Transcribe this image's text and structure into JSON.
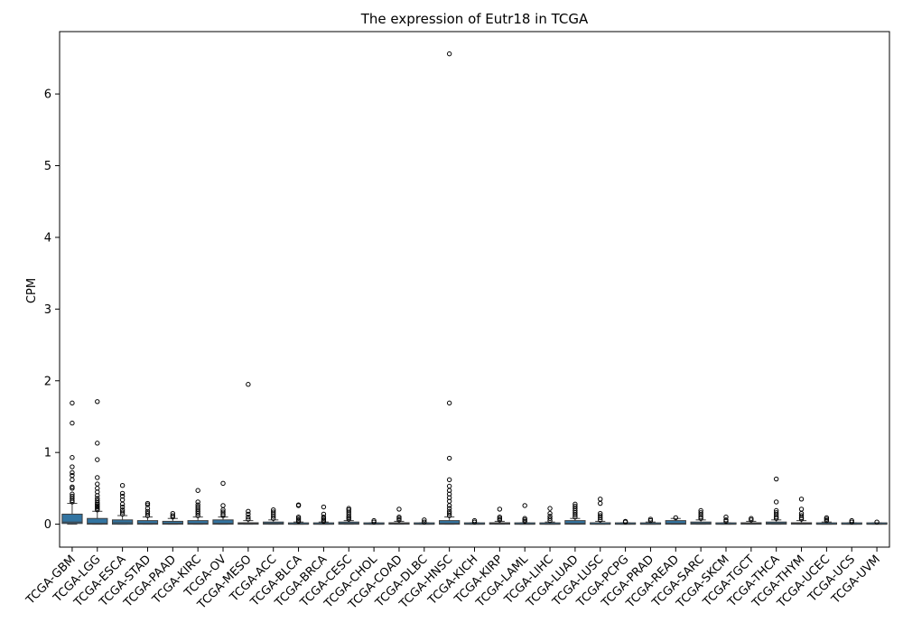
{
  "chart_data": {
    "type": "box",
    "title": "The expression of Eutr18 in TCGA",
    "xlabel": "",
    "ylabel": "CPM",
    "ylim": [
      -0.32,
      6.87
    ],
    "yticks": [
      0,
      1,
      2,
      3,
      4,
      5,
      6
    ],
    "box_color": "#3274a1",
    "categories": [
      "TCGA-GBM",
      "TCGA-LGG",
      "TCGA-ESCA",
      "TCGA-STAD",
      "TCGA-PAAD",
      "TCGA-KIRC",
      "TCGA-OV",
      "TCGA-MESO",
      "TCGA-ACC",
      "TCGA-BLCA",
      "TCGA-BRCA",
      "TCGA-CESC",
      "TCGA-CHOL",
      "TCGA-COAD",
      "TCGA-DLBC",
      "TCGA-HNSC",
      "TCGA-KICH",
      "TCGA-KIRP",
      "TCGA-LAML",
      "TCGA-LIHC",
      "TCGA-LUAD",
      "TCGA-LUSC",
      "TCGA-PCPG",
      "TCGA-PRAD",
      "TCGA-READ",
      "TCGA-SARC",
      "TCGA-SKCM",
      "TCGA-TGCT",
      "TCGA-THCA",
      "TCGA-THYM",
      "TCGA-UCEC",
      "TCGA-UCS",
      "TCGA-UVM"
    ],
    "boxes": [
      {
        "whislo": 0,
        "q1": 0.01,
        "med": 0.03,
        "q3": 0.14,
        "whishi": 0.29,
        "fliers": [
          0.31,
          0.33,
          0.36,
          0.39,
          0.42,
          0.5,
          0.52,
          0.62,
          0.68,
          0.72,
          0.8,
          0.93,
          1.41,
          1.69
        ]
      },
      {
        "whislo": 0,
        "q1": 0.0,
        "med": 0.01,
        "q3": 0.08,
        "whishi": 0.18,
        "fliers": [
          0.2,
          0.22,
          0.24,
          0.26,
          0.28,
          0.3,
          0.33,
          0.36,
          0.4,
          0.45,
          0.5,
          0.56,
          0.65,
          0.9,
          1.13,
          1.71
        ]
      },
      {
        "whislo": 0,
        "q1": 0.0,
        "med": 0.02,
        "q3": 0.06,
        "whishi": 0.12,
        "fliers": [
          0.14,
          0.17,
          0.2,
          0.24,
          0.28,
          0.34,
          0.39,
          0.43,
          0.54
        ]
      },
      {
        "whislo": 0,
        "q1": 0.0,
        "med": 0.01,
        "q3": 0.05,
        "whishi": 0.1,
        "fliers": [
          0.12,
          0.15,
          0.18,
          0.22,
          0.27,
          0.29
        ]
      },
      {
        "whislo": 0,
        "q1": 0.0,
        "med": 0.01,
        "q3": 0.04,
        "whishi": 0.08,
        "fliers": [
          0.1,
          0.12,
          0.15
        ]
      },
      {
        "whislo": 0,
        "q1": 0.0,
        "med": 0.01,
        "q3": 0.05,
        "whishi": 0.1,
        "fliers": [
          0.12,
          0.15,
          0.18,
          0.21,
          0.24,
          0.27,
          0.31,
          0.47
        ]
      },
      {
        "whislo": 0,
        "q1": 0.0,
        "med": 0.01,
        "q3": 0.06,
        "whishi": 0.1,
        "fliers": [
          0.12,
          0.14,
          0.17,
          0.2,
          0.26,
          0.57
        ]
      },
      {
        "whislo": 0,
        "q1": 0.0,
        "med": 0.01,
        "q3": 0.02,
        "whishi": 0.05,
        "fliers": [
          0.07,
          0.1,
          0.14,
          0.18,
          1.95
        ]
      },
      {
        "whislo": 0,
        "q1": 0.0,
        "med": 0.01,
        "q3": 0.03,
        "whishi": 0.06,
        "fliers": [
          0.08,
          0.11,
          0.14,
          0.17,
          0.2
        ]
      },
      {
        "whislo": 0,
        "q1": 0.0,
        "med": 0.0,
        "q3": 0.01,
        "whishi": 0.03,
        "fliers": [
          0.04,
          0.06,
          0.08,
          0.1,
          0.26,
          0.27
        ]
      },
      {
        "whislo": 0,
        "q1": 0.0,
        "med": 0.0,
        "q3": 0.01,
        "whishi": 0.03,
        "fliers": [
          0.04,
          0.06,
          0.08,
          0.1,
          0.14,
          0.24
        ]
      },
      {
        "whislo": 0,
        "q1": 0.0,
        "med": 0.01,
        "q3": 0.03,
        "whishi": 0.05,
        "fliers": [
          0.07,
          0.09,
          0.11,
          0.14,
          0.17,
          0.2,
          0.22
        ]
      },
      {
        "whislo": 0,
        "q1": 0.0,
        "med": 0.0,
        "q3": 0.01,
        "whishi": 0.02,
        "fliers": [
          0.03,
          0.05
        ]
      },
      {
        "whislo": 0,
        "q1": 0.0,
        "med": 0.01,
        "q3": 0.02,
        "whishi": 0.04,
        "fliers": [
          0.06,
          0.08,
          0.1,
          0.21
        ]
      },
      {
        "whislo": 0,
        "q1": 0.0,
        "med": 0.0,
        "q3": 0.01,
        "whishi": 0.02,
        "fliers": [
          0.03,
          0.06
        ]
      },
      {
        "whislo": 0,
        "q1": 0.0,
        "med": 0.01,
        "q3": 0.05,
        "whishi": 0.1,
        "fliers": [
          0.12,
          0.15,
          0.18,
          0.22,
          0.26,
          0.32,
          0.37,
          0.42,
          0.47,
          0.53,
          0.62,
          0.92,
          1.69,
          6.56
        ]
      },
      {
        "whislo": 0,
        "q1": 0.0,
        "med": 0.0,
        "q3": 0.01,
        "whishi": 0.02,
        "fliers": [
          0.03,
          0.05
        ]
      },
      {
        "whislo": 0,
        "q1": 0.0,
        "med": 0.01,
        "q3": 0.02,
        "whishi": 0.04,
        "fliers": [
          0.06,
          0.08,
          0.1,
          0.21
        ]
      },
      {
        "whislo": 0,
        "q1": 0.0,
        "med": 0.0,
        "q3": 0.01,
        "whishi": 0.02,
        "fliers": [
          0.04,
          0.06,
          0.08,
          0.26
        ]
      },
      {
        "whislo": 0,
        "q1": 0.0,
        "med": 0.0,
        "q3": 0.01,
        "whishi": 0.03,
        "fliers": [
          0.05,
          0.08,
          0.11,
          0.15,
          0.22
        ]
      },
      {
        "whislo": 0,
        "q1": 0.0,
        "med": 0.01,
        "q3": 0.05,
        "whishi": 0.08,
        "fliers": [
          0.1,
          0.13,
          0.16,
          0.19,
          0.22,
          0.25,
          0.28
        ]
      },
      {
        "whislo": 0,
        "q1": 0.0,
        "med": 0.0,
        "q3": 0.02,
        "whishi": 0.04,
        "fliers": [
          0.06,
          0.09,
          0.12,
          0.15,
          0.29,
          0.35
        ]
      },
      {
        "whislo": 0,
        "q1": 0.0,
        "med": 0.0,
        "q3": 0.01,
        "whishi": 0.02,
        "fliers": [
          0.03,
          0.04
        ]
      },
      {
        "whislo": 0,
        "q1": 0.0,
        "med": 0.0,
        "q3": 0.01,
        "whishi": 0.03,
        "fliers": [
          0.05,
          0.07
        ]
      },
      {
        "whislo": 0,
        "q1": 0.0,
        "med": 0.01,
        "q3": 0.05,
        "whishi": 0.08,
        "fliers": [
          0.09
        ]
      },
      {
        "whislo": 0,
        "q1": 0.0,
        "med": 0.01,
        "q3": 0.03,
        "whishi": 0.06,
        "fliers": [
          0.08,
          0.1,
          0.13,
          0.16,
          0.19
        ]
      },
      {
        "whislo": 0,
        "q1": 0.0,
        "med": 0.0,
        "q3": 0.01,
        "whishi": 0.02,
        "fliers": [
          0.04,
          0.06,
          0.1
        ]
      },
      {
        "whislo": 0,
        "q1": 0.0,
        "med": 0.01,
        "q3": 0.02,
        "whishi": 0.04,
        "fliers": [
          0.06,
          0.08
        ]
      },
      {
        "whislo": 0,
        "q1": 0.0,
        "med": 0.01,
        "q3": 0.03,
        "whishi": 0.06,
        "fliers": [
          0.08,
          0.1,
          0.13,
          0.16,
          0.19,
          0.31,
          0.63
        ]
      },
      {
        "whislo": 0,
        "q1": 0.0,
        "med": 0.01,
        "q3": 0.02,
        "whishi": 0.05,
        "fliers": [
          0.07,
          0.09,
          0.12,
          0.15,
          0.21,
          0.35
        ]
      },
      {
        "whislo": 0,
        "q1": 0.0,
        "med": 0.0,
        "q3": 0.01,
        "whishi": 0.03,
        "fliers": [
          0.05,
          0.07,
          0.09
        ]
      },
      {
        "whislo": 0,
        "q1": 0.0,
        "med": 0.0,
        "q3": 0.01,
        "whishi": 0.02,
        "fliers": [
          0.03,
          0.05
        ]
      },
      {
        "whislo": 0,
        "q1": 0.0,
        "med": 0.0,
        "q3": 0.01,
        "whishi": 0.02,
        "fliers": [
          0.03
        ]
      }
    ]
  }
}
